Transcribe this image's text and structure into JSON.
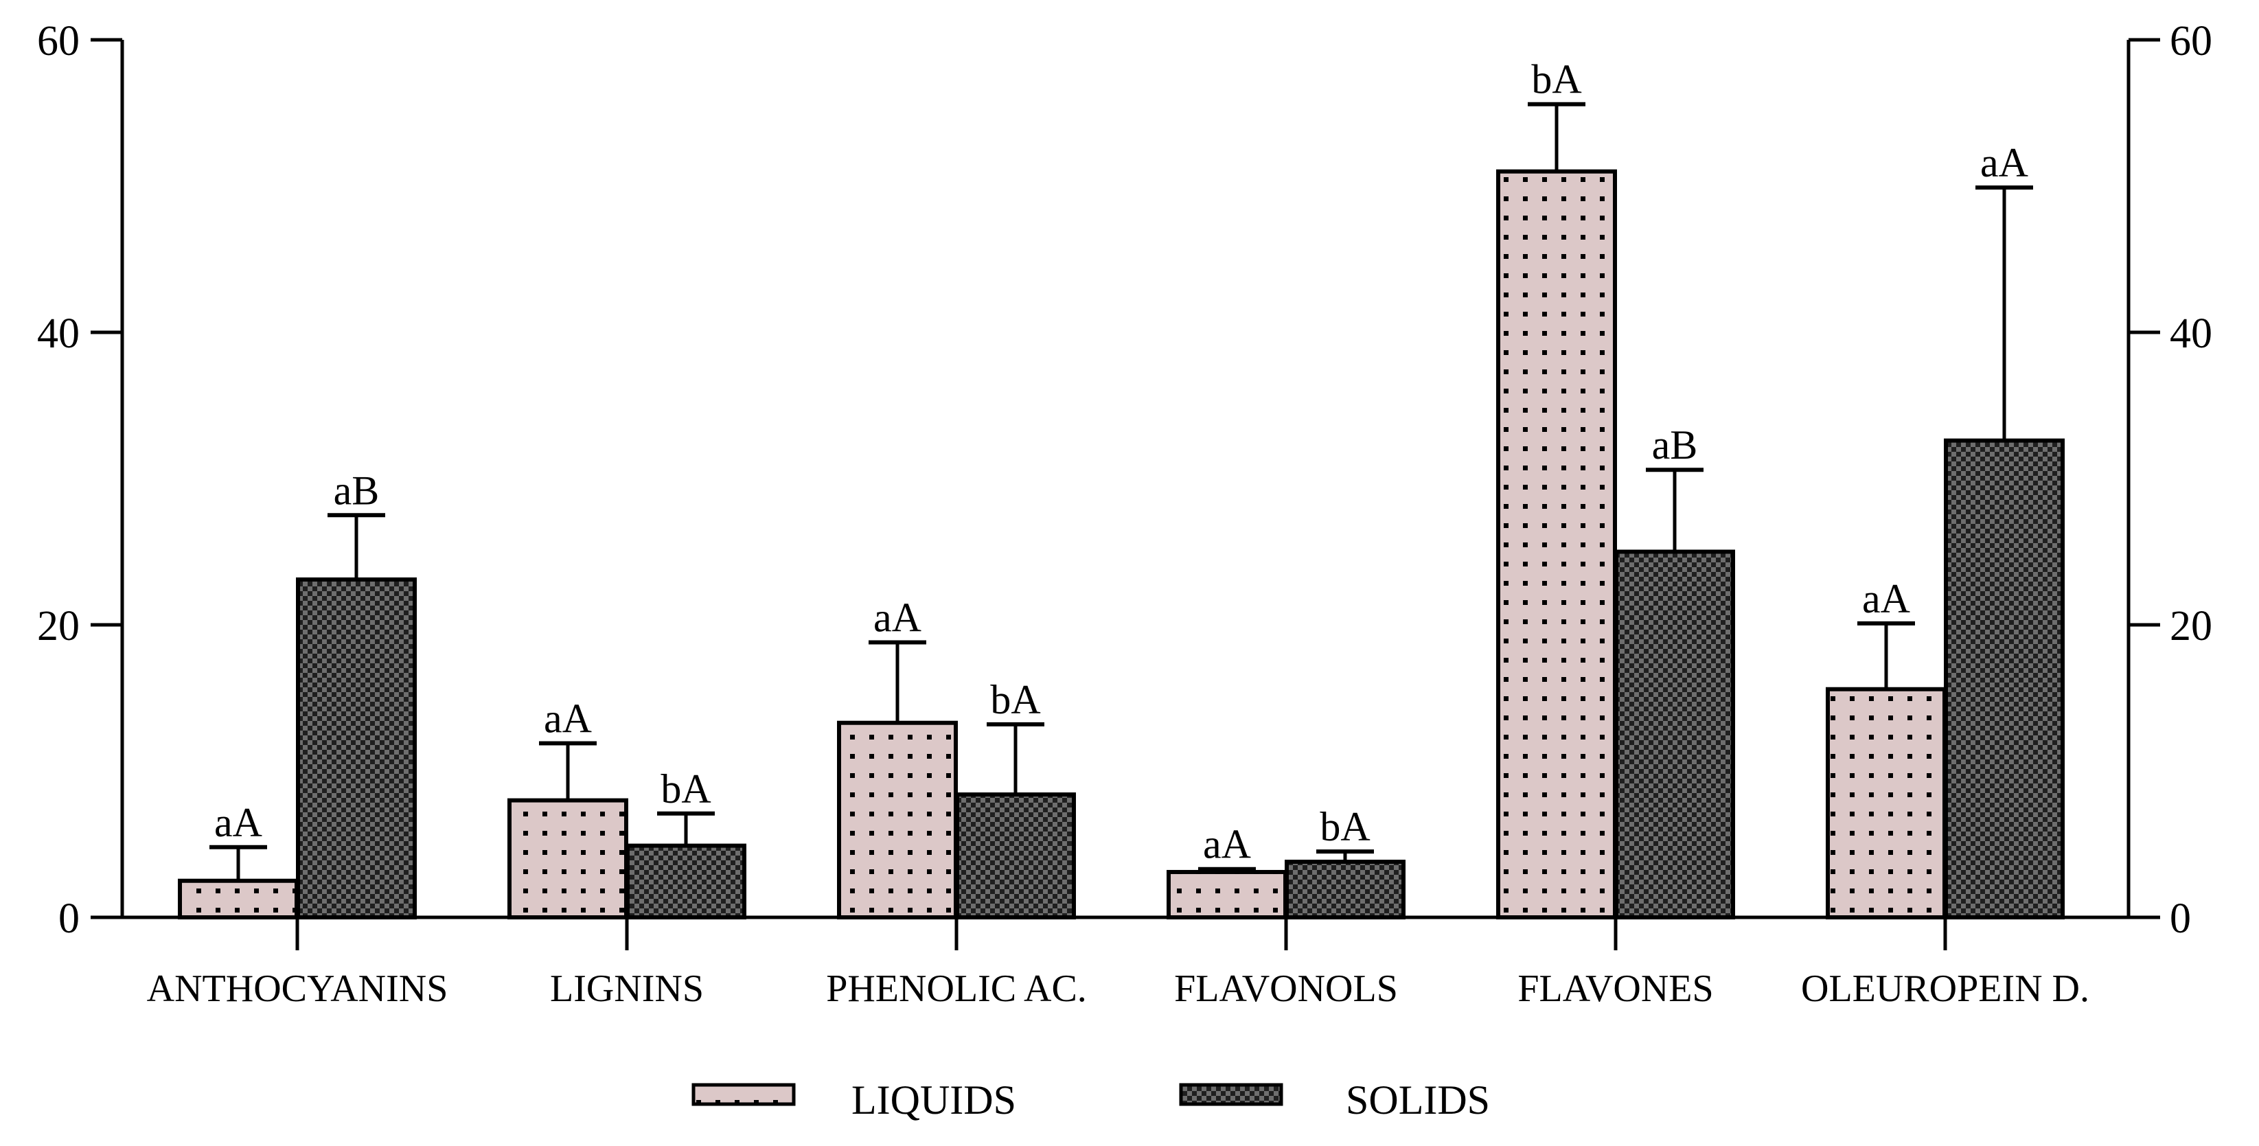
{
  "colors": {
    "liquids_fill": "#dcc8c8",
    "solids_fill": "#1f1f1f",
    "axis": "#000000",
    "dot_dark": "#000000",
    "dot_light": "#6e6e6e"
  },
  "chart_data": {
    "type": "bar",
    "title": "",
    "xlabel": "",
    "ylabel": "",
    "ylim": [
      0,
      60
    ],
    "yticks": [
      "0",
      "20",
      "40",
      "60"
    ],
    "y2ticks": [
      "0",
      "20",
      "40",
      "60"
    ],
    "categories": [
      "ANTHOCYANINS",
      "LIGNINS",
      "PHENOLIC AC.",
      "FLAVONOLS",
      "FLAVONES",
      "OLEUROPEIN D."
    ],
    "series": [
      {
        "name": "LIQUIDS",
        "values": [
          2.5,
          8.0,
          13.3,
          3.1,
          51.0,
          15.6
        ],
        "errors": [
          2.3,
          3.9,
          5.5,
          0.2,
          4.6,
          4.5
        ],
        "labels": [
          "aA",
          "aA",
          "aA",
          "aA",
          "bA",
          "aA"
        ]
      },
      {
        "name": "SOLIDS",
        "values": [
          23.1,
          4.9,
          8.4,
          3.8,
          25.0,
          32.6
        ],
        "errors": [
          4.4,
          2.2,
          4.8,
          0.7,
          5.6,
          17.3
        ],
        "labels": [
          "aB",
          "bA",
          "bA",
          "bA",
          "aB",
          "aA"
        ]
      }
    ],
    "legend": {
      "position": "bottom-center"
    }
  }
}
